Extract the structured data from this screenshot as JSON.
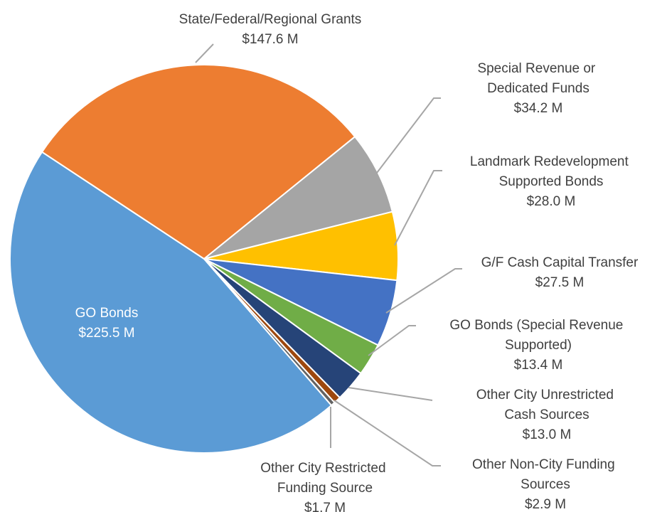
{
  "chart_data": {
    "type": "pie",
    "categories": [
      "GO Bonds",
      "State/Federal/Regional Grants",
      "Special Revenue or Dedicated Funds",
      "Landmark Redevelopment Supported Bonds",
      "G/F Cash Capital Transfer",
      "GO Bonds (Special Revenue Supported)",
      "Other City Unrestricted Cash Sources",
      "Other Non-City Funding Sources",
      "Other City Restricted Funding Source"
    ],
    "values": [
      225.5,
      147.6,
      34.2,
      28.0,
      27.5,
      13.4,
      13.0,
      2.9,
      1.7
    ],
    "value_labels": [
      "$225.5 M",
      "$147.6 M",
      "$34.2 M",
      "$28.0 M",
      "$27.5 M",
      "$13.4 M",
      "$13.0 M",
      "$2.9 M",
      "$1.7 M"
    ],
    "colors": [
      "#5b9bd5",
      "#ed7d31",
      "#a5a5a5",
      "#ffc000",
      "#4472c4",
      "#70ad47",
      "#264478",
      "#9e480e",
      "#636363"
    ]
  }
}
